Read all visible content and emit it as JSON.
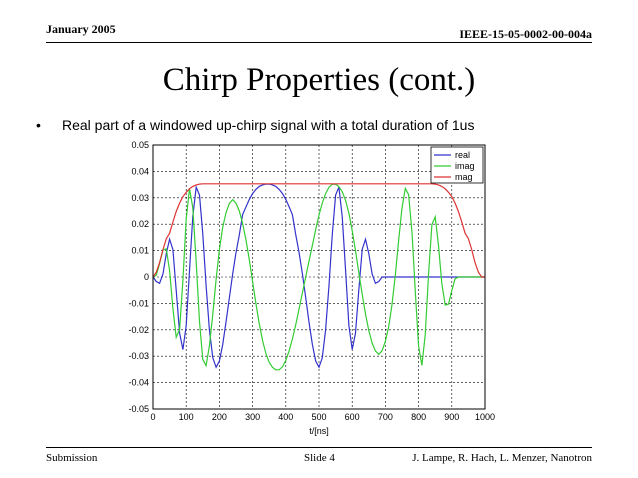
{
  "header": {
    "date": "January 2005",
    "doc_id": "IEEE-15-05-0002-00-004a"
  },
  "slide": {
    "title": "Chirp Properties (cont.)",
    "bullet_marker": "•",
    "bullet": "Real part of a windowed up-chirp signal with a total duration of 1us"
  },
  "footer": {
    "left": "Submission",
    "center": "Slide 4",
    "right": "J. Lampe, R. Hach, L. Menzer, Nanotron"
  },
  "chart_data": {
    "type": "line",
    "xlabel": "t/[ns]",
    "ylabel": "",
    "xlim": [
      0,
      1000
    ],
    "ylim": [
      -0.05,
      0.05
    ],
    "xticks": [
      "0",
      "100",
      "200",
      "300",
      "400",
      "500",
      "600",
      "700",
      "800",
      "900",
      "1000"
    ],
    "yticks": [
      "0.05",
      "0.04",
      "0.03",
      "0.02",
      "0.01",
      "0",
      "-0.01",
      "-0.02",
      "-0.03",
      "-0.04",
      "-0.05"
    ],
    "grid": true,
    "legend_position": "top-right",
    "x": [
      0,
      10,
      20,
      30,
      40,
      50,
      60,
      70,
      80,
      90,
      100,
      110,
      120,
      130,
      140,
      150,
      160,
      170,
      180,
      190,
      200,
      210,
      220,
      230,
      240,
      250,
      260,
      270,
      280,
      290,
      300,
      310,
      320,
      330,
      340,
      350,
      360,
      370,
      380,
      390,
      400,
      410,
      420,
      430,
      440,
      450,
      460,
      470,
      480,
      490,
      500,
      510,
      520,
      530,
      540,
      550,
      560,
      570,
      580,
      590,
      600,
      610,
      620,
      630,
      640,
      650,
      660,
      670,
      680,
      690,
      700,
      710,
      720,
      730,
      740,
      750,
      760,
      770,
      780,
      790,
      800,
      810,
      820,
      830,
      840,
      850,
      860,
      870,
      880,
      890,
      900,
      910,
      920,
      930,
      940,
      950,
      960,
      970,
      980,
      990,
      1000
    ],
    "series": [
      {
        "name": "real",
        "color": "#3333cc",
        "values": [
          0.0,
          -0.0017,
          -0.0024,
          0.0012,
          0.0089,
          0.0143,
          0.0104,
          -0.005,
          -0.0212,
          -0.0275,
          -0.0184,
          0.0024,
          0.023,
          0.034,
          0.031,
          0.0162,
          -0.0032,
          -0.02,
          -0.0306,
          -0.0342,
          -0.0318,
          -0.0256,
          -0.0171,
          -0.0078,
          0.0012,
          0.0092,
          0.0159,
          0.0236,
          0.0266,
          0.0294,
          0.0316,
          0.0332,
          0.0343,
          0.0349,
          0.0352,
          0.0352,
          0.0349,
          0.0343,
          0.0332,
          0.0316,
          0.0294,
          0.0266,
          0.0236,
          0.0159,
          0.0092,
          0.0012,
          -0.0078,
          -0.0171,
          -0.0256,
          -0.0318,
          -0.0342,
          -0.0306,
          -0.02,
          -0.0032,
          0.0162,
          0.031,
          0.034,
          0.023,
          0.0024,
          -0.0184,
          -0.0275,
          -0.0212,
          -0.005,
          0.0104,
          0.0143,
          0.0089,
          0.0012,
          -0.0024,
          -0.0017,
          0.0,
          0.0,
          0.0,
          0.0,
          0.0,
          0.0,
          0.0,
          0.0,
          0.0,
          0.0,
          0.0,
          0.0,
          0.0,
          0.0,
          0.0,
          0.0,
          0.0,
          0.0,
          0.0,
          0.0,
          0.0,
          0.0,
          0.0,
          0.0,
          0.0,
          0.0,
          0.0,
          0.0,
          0.0,
          0.0,
          0.0,
          0.0
        ]
      },
      {
        "name": "imag",
        "color": "#33cc33",
        "values": [
          0.0,
          0.0007,
          0.0051,
          0.0103,
          0.0106,
          0.0024,
          -0.0119,
          -0.0228,
          -0.0199,
          -0.0013,
          0.022,
          0.0335,
          0.0262,
          0.0056,
          -0.0169,
          -0.0312,
          -0.0336,
          -0.0261,
          -0.0141,
          -0.0009,
          0.0104,
          0.0188,
          0.0243,
          0.0279,
          0.0293,
          0.028,
          0.025,
          0.0203,
          0.014,
          0.0065,
          -0.0017,
          -0.01,
          -0.0176,
          -0.0241,
          -0.029,
          -0.0323,
          -0.0342,
          -0.0352,
          -0.0351,
          -0.034,
          -0.0316,
          -0.028,
          -0.0235,
          -0.018,
          -0.012,
          -0.006,
          0.0,
          0.006,
          0.012,
          0.018,
          0.0235,
          0.028,
          0.0316,
          0.034,
          0.0351,
          0.0352,
          0.0342,
          0.0323,
          0.029,
          0.0241,
          0.0176,
          0.01,
          0.0017,
          -0.0065,
          -0.014,
          -0.0203,
          -0.025,
          -0.028,
          -0.0293,
          -0.0279,
          -0.0243,
          -0.0188,
          -0.0104,
          0.0009,
          0.0141,
          0.0261,
          0.0336,
          0.0312,
          0.0169,
          -0.0056,
          -0.0262,
          -0.0335,
          -0.022,
          0.0013,
          0.0199,
          0.0228,
          0.0119,
          -0.0024,
          -0.0106,
          -0.0103,
          -0.0051,
          -0.0007,
          0.0,
          0.0,
          0.0,
          0.0,
          0.0,
          0.0,
          0.0,
          0.0,
          0.0
        ]
      },
      {
        "name": "mag",
        "color": "#dd3333",
        "values": [
          0.0,
          0.0018,
          0.0055,
          0.0104,
          0.0145,
          0.0166,
          0.0208,
          0.0248,
          0.028,
          0.0304,
          0.0321,
          0.0334,
          0.0343,
          0.0349,
          0.0352,
          0.0353,
          0.0353,
          0.0353,
          0.0353,
          0.0353,
          0.0353,
          0.0353,
          0.0353,
          0.0353,
          0.0353,
          0.0353,
          0.0353,
          0.0353,
          0.0353,
          0.0353,
          0.0353,
          0.0353,
          0.0353,
          0.0353,
          0.0353,
          0.0353,
          0.0353,
          0.0353,
          0.0353,
          0.0353,
          0.0353,
          0.0353,
          0.0353,
          0.0353,
          0.0353,
          0.0353,
          0.0353,
          0.0353,
          0.0353,
          0.0353,
          0.0353,
          0.0353,
          0.0353,
          0.0353,
          0.0353,
          0.0353,
          0.0353,
          0.0353,
          0.0353,
          0.0353,
          0.0353,
          0.0353,
          0.0353,
          0.0353,
          0.0353,
          0.0353,
          0.0353,
          0.0353,
          0.0353,
          0.0353,
          0.0353,
          0.0353,
          0.0353,
          0.0353,
          0.0353,
          0.0353,
          0.0353,
          0.0353,
          0.0353,
          0.0353,
          0.0353,
          0.0353,
          0.0353,
          0.0353,
          0.0353,
          0.0352,
          0.0349,
          0.0343,
          0.0334,
          0.0321,
          0.0304,
          0.028,
          0.0248,
          0.0208,
          0.0166,
          0.0145,
          0.0104,
          0.0055,
          0.0018,
          0.0,
          0.0
        ]
      }
    ]
  }
}
